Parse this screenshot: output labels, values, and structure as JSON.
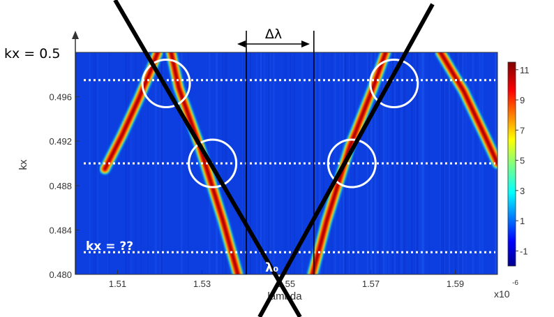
{
  "chart_data": {
    "type": "heatmap",
    "xlabel": "lambda",
    "ylabel": "kx",
    "x_ticks": [
      "1.51",
      "1.53",
      "1.55",
      "1.57",
      "1.59"
    ],
    "x_tick_values": [
      1.51,
      1.53,
      1.55,
      1.57,
      1.59
    ],
    "x_multiplier_label": "x10",
    "x_multiplier_exp": "-6",
    "y_ticks": [
      "0.480",
      "0.484",
      "0.488",
      "0.492",
      "0.496"
    ],
    "y_tick_values": [
      0.48,
      0.484,
      0.488,
      0.492,
      0.496
    ],
    "xlim": [
      1.5,
      1.6
    ],
    "ylim": [
      0.48,
      0.5
    ],
    "colorbar": {
      "ticks": [
        "-1",
        "1",
        "3",
        "5",
        "7",
        "9",
        "11"
      ],
      "tick_values": [
        -1,
        1,
        3,
        5,
        7,
        9,
        11
      ],
      "range": [
        -2,
        11.5
      ],
      "colormap": "jet"
    },
    "bands": [
      {
        "name": "",
        "points": [
          [
            1.507,
            0.4895
          ],
          [
            1.511,
            0.4925
          ],
          [
            1.515,
            0.4958
          ],
          [
            1.518,
            0.4985
          ],
          [
            1.5195,
            0.5
          ]
        ]
      },
      {
        "name": "",
        "points": [
          [
            1.5227,
            0.5
          ],
          [
            1.5245,
            0.4968
          ],
          [
            1.5295,
            0.4915
          ],
          [
            1.535,
            0.4848
          ],
          [
            1.5385,
            0.48
          ]
        ]
      },
      {
        "name": "",
        "points": [
          [
            1.5562,
            0.48
          ],
          [
            1.5595,
            0.4848
          ],
          [
            1.565,
            0.4915
          ],
          [
            1.5705,
            0.4968
          ],
          [
            1.5735,
            0.5
          ]
        ]
      },
      {
        "name": "",
        "points": [
          [
            1.5865,
            0.5
          ],
          [
            1.592,
            0.4965
          ],
          [
            1.597,
            0.4925
          ],
          [
            1.6,
            0.49
          ]
        ]
      }
    ],
    "dotted_kx_lines": [
      0.4975,
      0.49,
      0.482
    ],
    "circles": [
      [
        1.5215,
        0.4972
      ],
      [
        1.5325,
        0.49
      ],
      [
        1.5655,
        0.49
      ],
      [
        1.5755,
        0.4972
      ]
    ],
    "vertical_lines": [
      1.5405,
      1.5565
    ],
    "annotations": {
      "kx_top": "kx = 0.5",
      "kx_unknown": "kx = ??",
      "delta_lambda": "Δλ",
      "lambda0": "λ₀"
    },
    "colors": {
      "background_blue": "#0d3fe0",
      "dotted_line": "#ffffff",
      "cross_lines": "#000000"
    }
  }
}
